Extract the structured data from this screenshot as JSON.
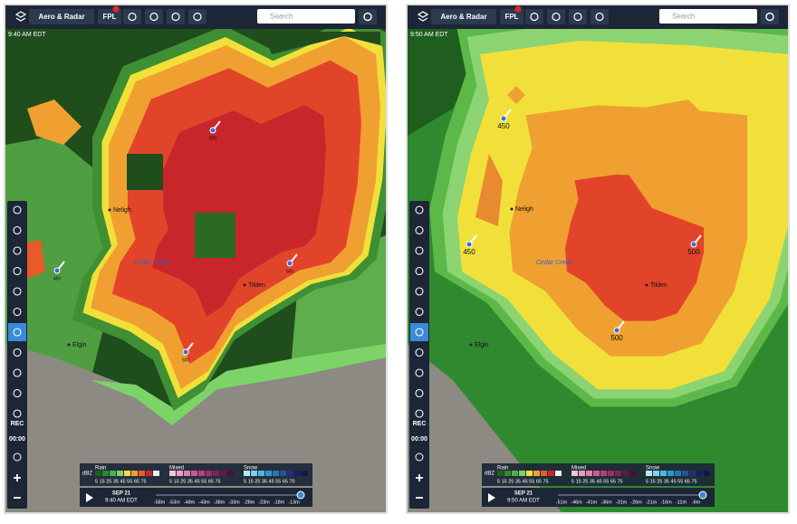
{
  "panels": [
    {
      "header": {
        "title": "Aero & Radar",
        "fpl": "FPL",
        "search": "Search"
      },
      "timestamp": "9:40 AM EDT",
      "map_labels": [
        "Neligh",
        "Cedar Creek",
        "Tilden",
        "Elgin",
        "500",
        "500",
        "500",
        "450"
      ],
      "toolbar": {
        "rec": "REC",
        "timer": "00:00"
      },
      "legend": {
        "unit": "dBZ",
        "groups": [
          {
            "name": "Rain",
            "scale": "5 15 25 35 45 55 65 75"
          },
          {
            "name": "Mixed",
            "scale": "5 15 25 35 45 55 65 75"
          },
          {
            "name": "Snow",
            "scale": "5 15 25 35 45 55 65 70"
          }
        ]
      },
      "timeline": {
        "date": "SEP 21",
        "time": "9:40 AM EDT",
        "ticks": [
          "-58m",
          "-53m",
          "-48m",
          "-43m",
          "-38m",
          "-33m",
          "-28m",
          "-23m",
          "-18m",
          "-13m"
        ]
      }
    },
    {
      "header": {
        "title": "Aero & Radar",
        "fpl": "FPL",
        "search": "Search"
      },
      "timestamp": "9:50 AM EDT",
      "map_labels": [
        "Neligh",
        "Cedar Creek",
        "Tilden",
        "Elgin",
        "500",
        "500",
        "450",
        "450"
      ],
      "toolbar": {
        "rec": "REC",
        "timer": "00:00"
      },
      "legend": {
        "unit": "dBZ",
        "groups": [
          {
            "name": "Rain",
            "scale": "5 15 25 35 45 55 65 75"
          },
          {
            "name": "Mixed",
            "scale": "5 15 25 35 45 55 65 75"
          },
          {
            "name": "Snow",
            "scale": "5 15 25 35 45 55 65 75"
          }
        ]
      },
      "timeline": {
        "date": "SEP 21",
        "time": "9:50 AM EDT",
        "ticks": [
          "-51m",
          "-46m",
          "-41m",
          "-36m",
          "-31m",
          "-26m",
          "-21m",
          "-16m",
          "-11m",
          "-6m"
        ]
      }
    }
  ]
}
